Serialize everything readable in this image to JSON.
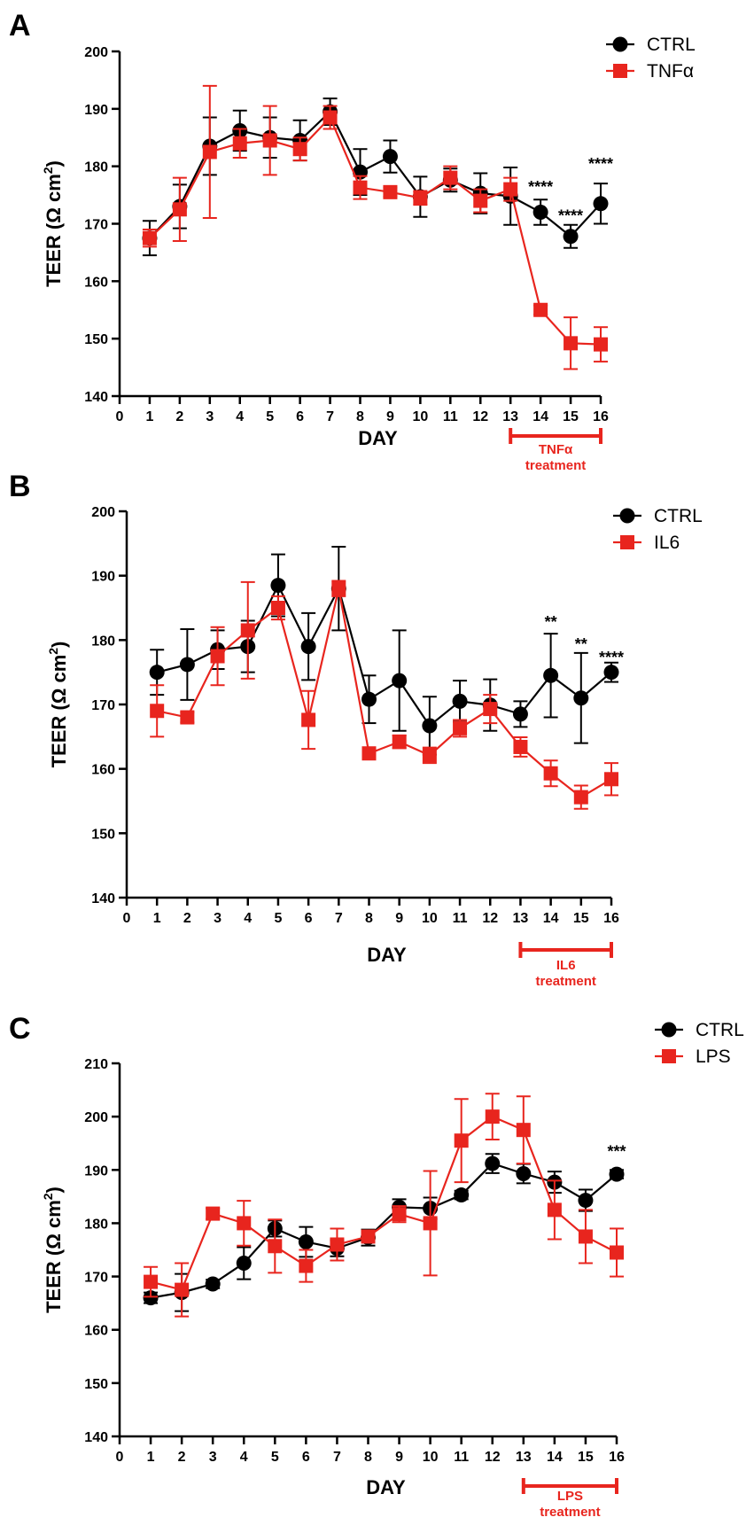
{
  "colors": {
    "ctrl": "#000000",
    "treated": "#e8251e"
  },
  "chart_data": [
    {
      "type": "line",
      "panel_label": "A",
      "xlabel": "DAY",
      "ylabel": "TEER (Ω cm",
      "ylabel_sup": "2",
      "ylabel_close": ")",
      "x_ticks": [
        0,
        1,
        2,
        3,
        4,
        5,
        6,
        7,
        8,
        9,
        10,
        11,
        12,
        13,
        14,
        15,
        16
      ],
      "y_ticks": [
        140,
        150,
        160,
        170,
        180,
        190,
        200
      ],
      "ylim": [
        140,
        200
      ],
      "xlim": [
        0,
        16
      ],
      "treatment": {
        "label": "TNFα",
        "label2": "treatment",
        "from": 13,
        "to": 16
      },
      "series": [
        {
          "name": "CTRL",
          "marker": "circle",
          "color_key": "ctrl",
          "x": [
            1,
            2,
            3,
            4,
            5,
            6,
            7,
            8,
            9,
            10,
            11,
            12,
            13,
            14,
            15,
            16
          ],
          "values": [
            167.5,
            173,
            183.5,
            186.2,
            185,
            184.5,
            189.5,
            179,
            181.7,
            174.7,
            177.6,
            175.3,
            174.8,
            172,
            167.8,
            173.5
          ],
          "errors": [
            3,
            3.8,
            5,
            3.5,
            3.5,
            3.5,
            2.3,
            4,
            2.8,
            3.5,
            2,
            3.5,
            5,
            2.2,
            2,
            3.5
          ]
        },
        {
          "name": "TNFα",
          "marker": "square",
          "color_key": "treated",
          "x": [
            1,
            2,
            3,
            4,
            5,
            6,
            7,
            8,
            9,
            10,
            11,
            12,
            13,
            14,
            15,
            16
          ],
          "values": [
            167.5,
            172.5,
            182.5,
            184,
            184.5,
            183,
            188.5,
            176.3,
            175.5,
            174.5,
            178,
            174,
            176,
            155,
            149.2,
            149
          ],
          "errors": [
            1.5,
            5.5,
            11.5,
            2.5,
            6,
            2,
            2,
            2,
            0.8,
            1.2,
            2,
            2,
            2,
            0.8,
            4.5,
            3
          ]
        }
      ],
      "annotations": [
        {
          "text": "****",
          "x": 14,
          "y": 175.5
        },
        {
          "text": "****",
          "x": 15,
          "y": 170.5
        },
        {
          "text": "****",
          "x": 16,
          "y": 179.5
        }
      ]
    },
    {
      "type": "line",
      "panel_label": "B",
      "xlabel": "DAY",
      "ylabel": "TEER (Ω cm",
      "ylabel_sup": "2",
      "ylabel_close": ")",
      "x_ticks": [
        0,
        1,
        2,
        3,
        4,
        5,
        6,
        7,
        8,
        9,
        10,
        11,
        12,
        13,
        14,
        15,
        16
      ],
      "y_ticks": [
        140,
        150,
        160,
        170,
        180,
        190,
        200
      ],
      "ylim": [
        140,
        200
      ],
      "xlim": [
        0,
        16
      ],
      "treatment": {
        "label": "IL6",
        "label2": "treatment",
        "from": 13,
        "to": 16
      },
      "series": [
        {
          "name": "CTRL",
          "marker": "circle",
          "color_key": "ctrl",
          "x": [
            1,
            2,
            3,
            4,
            5,
            6,
            7,
            8,
            9,
            10,
            11,
            12,
            13,
            14,
            15,
            16
          ],
          "values": [
            175,
            176.2,
            178.5,
            179,
            188.5,
            179,
            188,
            170.8,
            173.7,
            166.7,
            170.5,
            169.9,
            168.5,
            174.5,
            171,
            175
          ],
          "errors": [
            3.5,
            5.5,
            3,
            4,
            4.8,
            5.2,
            6.5,
            3.7,
            7.8,
            4.5,
            3.2,
            4,
            2,
            6.5,
            7,
            1.5
          ]
        },
        {
          "name": "IL6",
          "marker": "square",
          "color_key": "treated",
          "x": [
            1,
            2,
            3,
            4,
            5,
            6,
            7,
            8,
            9,
            10,
            11,
            12,
            13,
            14,
            15,
            16
          ],
          "values": [
            169,
            168,
            177.5,
            181.5,
            185,
            167.6,
            188,
            162.4,
            164.2,
            162.1,
            166.3,
            169.3,
            163.4,
            159.3,
            155.6,
            158.4
          ],
          "errors": [
            4,
            0.8,
            4.5,
            7.5,
            1.8,
            4.5,
            1.2,
            0.8,
            1,
            1.2,
            1.3,
            2.2,
            1.5,
            2,
            1.8,
            2.5
          ]
        }
      ],
      "annotations": [
        {
          "text": "**",
          "x": 14,
          "y": 182
        },
        {
          "text": "**",
          "x": 15,
          "y": 178.5
        },
        {
          "text": "****",
          "x": 16,
          "y": 176.5
        }
      ]
    },
    {
      "type": "line",
      "panel_label": "C",
      "xlabel": "DAY",
      "ylabel": "TEER (Ω cm",
      "ylabel_sup": "2",
      "ylabel_close": ")",
      "x_ticks": [
        0,
        1,
        2,
        3,
        4,
        5,
        6,
        7,
        8,
        9,
        10,
        11,
        12,
        13,
        14,
        15,
        16
      ],
      "y_ticks": [
        140,
        150,
        160,
        170,
        180,
        190,
        200,
        210
      ],
      "ylim": [
        140,
        210
      ],
      "xlim": [
        0,
        16
      ],
      "treatment": {
        "label": "LPS",
        "label2": "treatment",
        "from": 13,
        "to": 16
      },
      "series": [
        {
          "name": "CTRL",
          "marker": "circle",
          "color_key": "ctrl",
          "x": [
            1,
            2,
            3,
            4,
            5,
            6,
            7,
            8,
            9,
            10,
            11,
            12,
            13,
            14,
            15,
            16
          ],
          "values": [
            166,
            167,
            168.6,
            172.5,
            179,
            176.5,
            175.3,
            177.3,
            183,
            182.8,
            185.3,
            191.2,
            189.3,
            187.7,
            184.3,
            189.2
          ],
          "errors": [
            1,
            3.5,
            0.8,
            3,
            1.5,
            2.8,
            1.5,
            1.5,
            1.5,
            2,
            0.8,
            1.8,
            1.8,
            2,
            2,
            0.8
          ]
        },
        {
          "name": "LPS",
          "marker": "square",
          "color_key": "treated",
          "x": [
            1,
            2,
            3,
            4,
            5,
            6,
            7,
            8,
            9,
            10,
            11,
            12,
            13,
            14,
            15,
            16
          ],
          "values": [
            169,
            167.5,
            181.8,
            180,
            175.7,
            172,
            176,
            177.5,
            181.7,
            180,
            195.5,
            200,
            197.5,
            182.5,
            177.5,
            174.5
          ],
          "errors": [
            2.8,
            5,
            1,
            4.2,
            5,
            3,
            3,
            1,
            1.5,
            9.8,
            7.8,
            4.3,
            6.3,
            5.5,
            5,
            4.5
          ]
        }
      ],
      "annotations": [
        {
          "text": "***",
          "x": 16,
          "y": 192.5
        }
      ]
    }
  ]
}
